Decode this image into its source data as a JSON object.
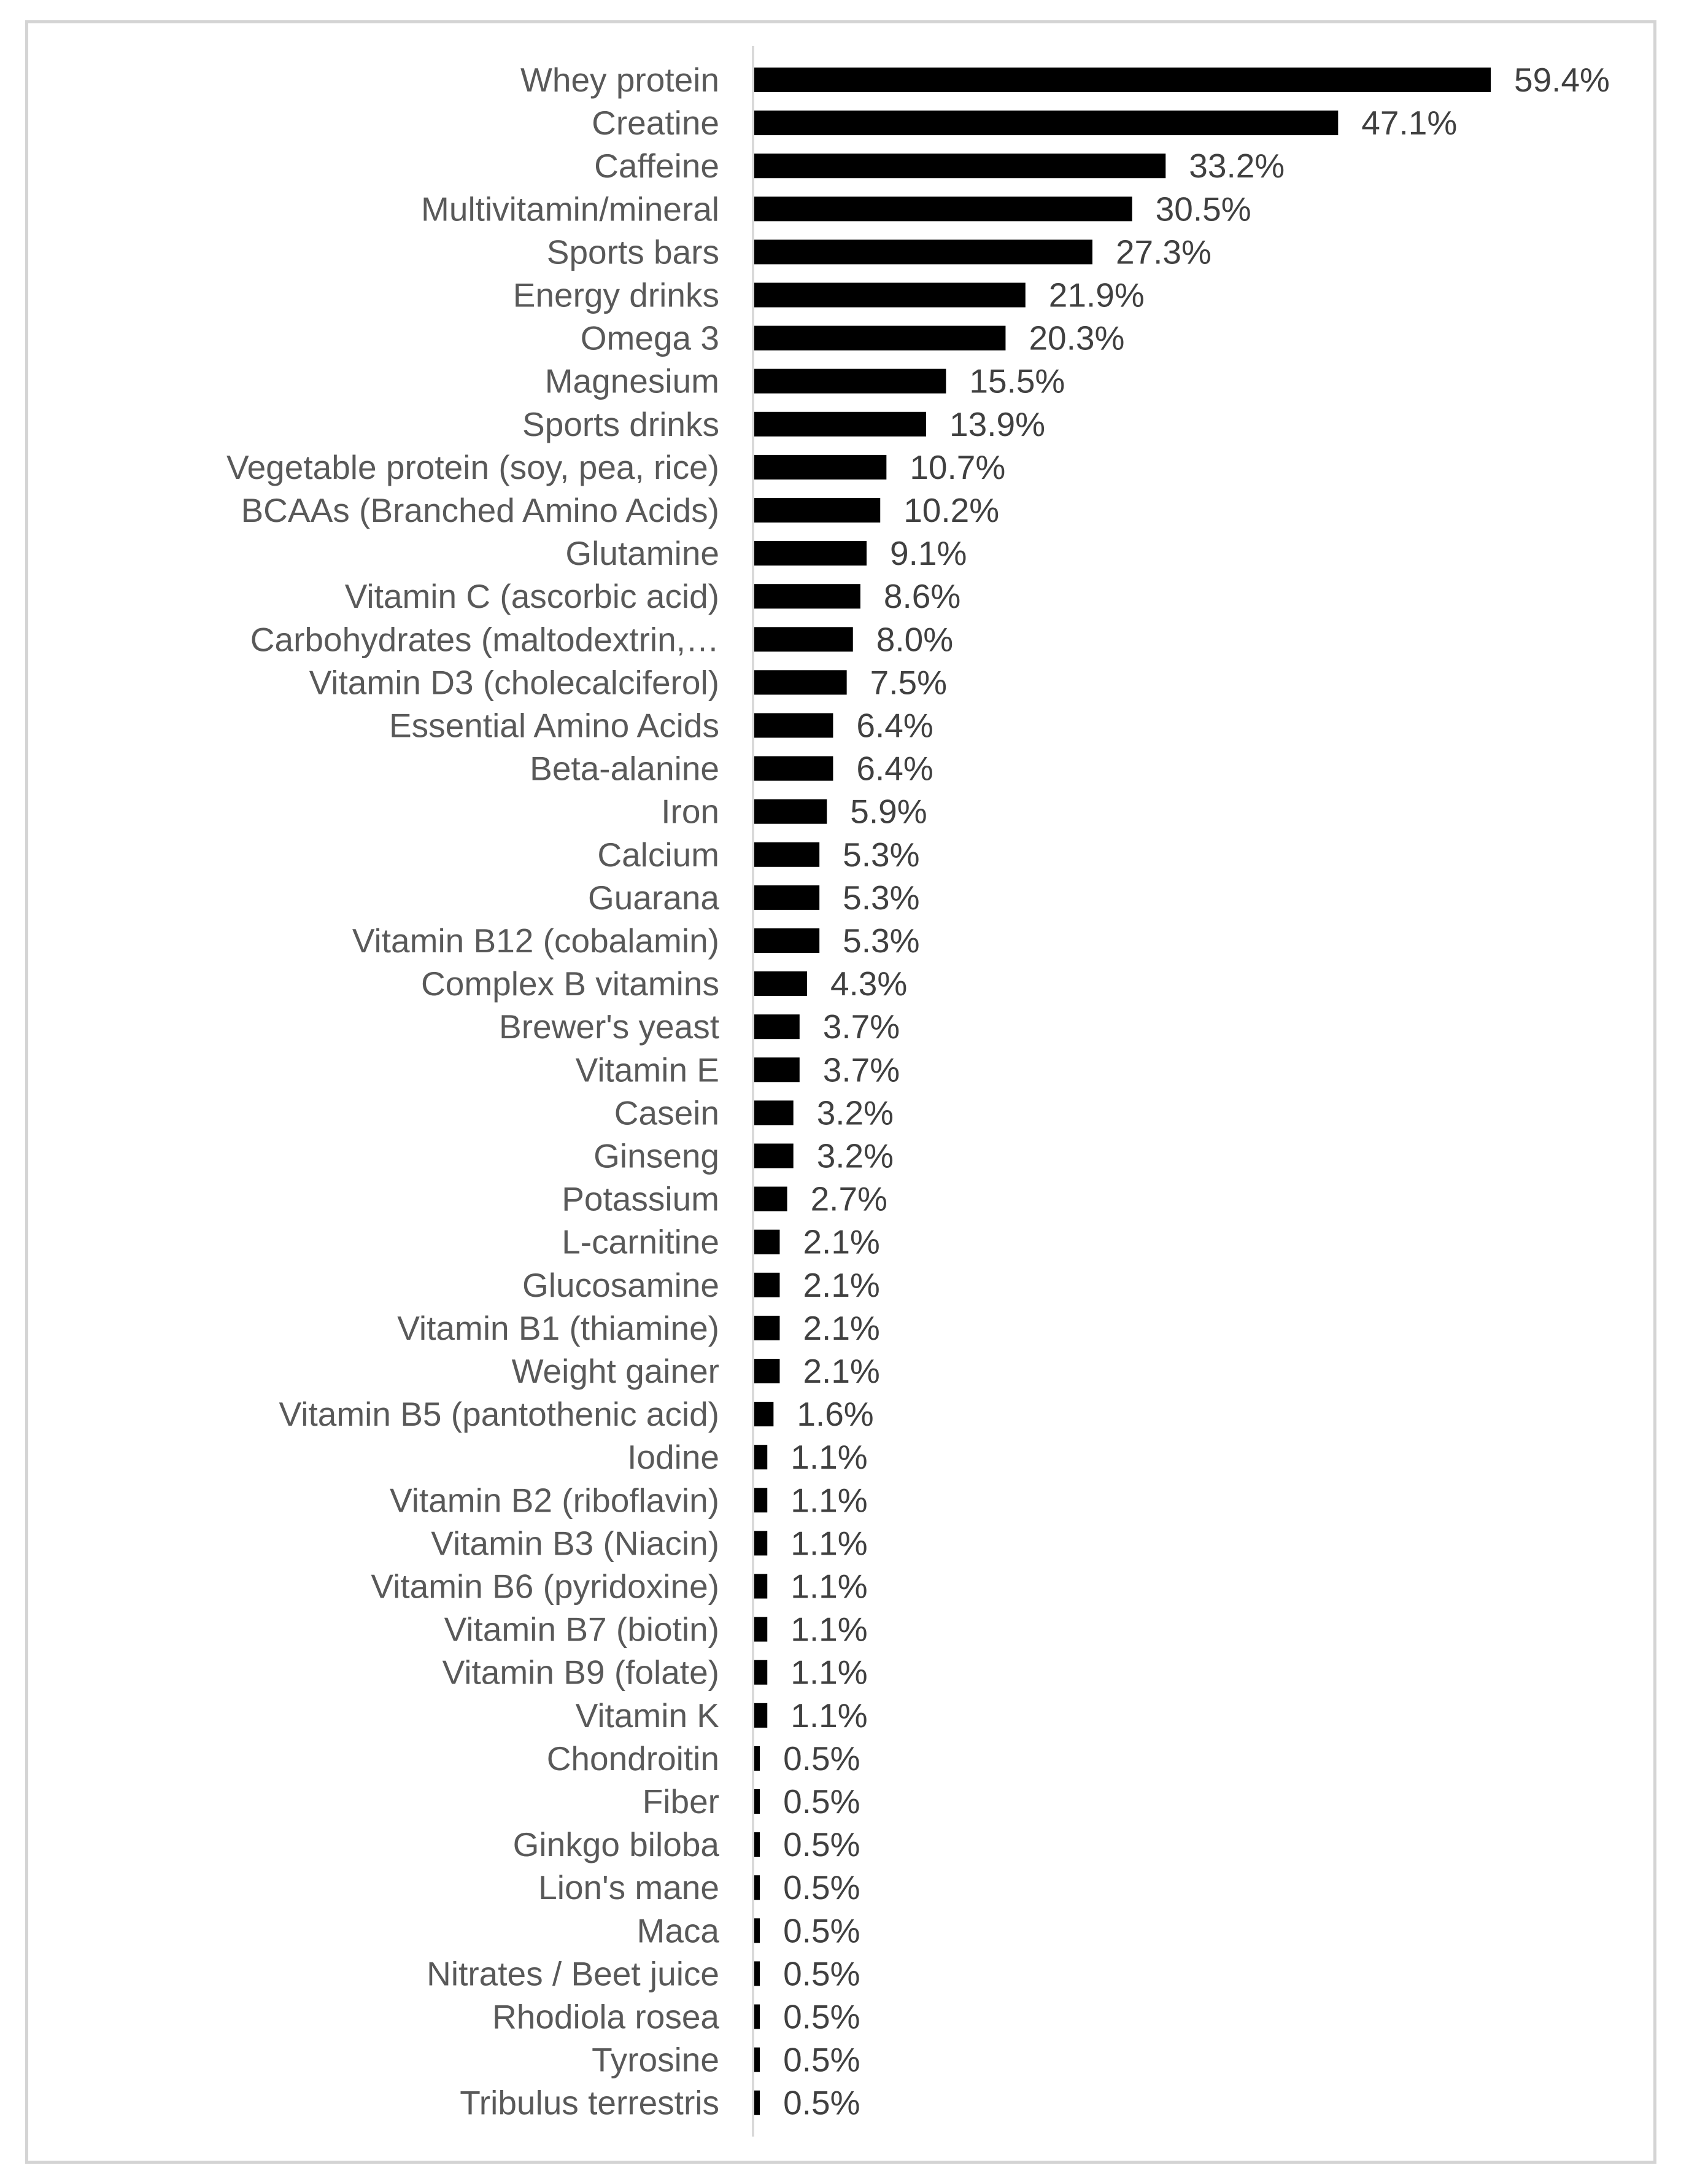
{
  "chart_data": {
    "type": "bar",
    "orientation": "horizontal",
    "categories": [
      "Whey protein",
      "Creatine",
      "Caffeine",
      "Multivitamin/mineral",
      "Sports bars",
      "Energy drinks",
      "Omega 3",
      "Magnesium",
      "Sports drinks",
      "Vegetable protein (soy, pea, rice)",
      "BCAAs (Branched Amino Acids)",
      "Glutamine",
      "Vitamin C (ascorbic acid)",
      "Carbohydrates (maltodextrin,…",
      "Vitamin D3 (cholecalciferol)",
      "Essential Amino Acids",
      "Beta-alanine",
      "Iron",
      "Calcium",
      "Guarana",
      "Vitamin B12 (cobalamin)",
      "Complex B vitamins",
      "Brewer's yeast",
      "Vitamin E",
      "Casein",
      "Ginseng",
      "Potassium",
      "L-carnitine",
      "Glucosamine",
      "Vitamin B1 (thiamine)",
      "Weight gainer",
      "Vitamin B5 (pantothenic acid)",
      "Iodine",
      "Vitamin B2 (riboflavin)",
      "Vitamin B3 (Niacin)",
      "Vitamin B6 (pyridoxine)",
      "Vitamin B7 (biotin)",
      "Vitamin B9 (folate)",
      "Vitamin K",
      "Chondroitin",
      "Fiber",
      "Ginkgo biloba",
      "Lion's mane",
      "Maca",
      "Nitrates / Beet juice",
      "Rhodiola rosea",
      "Tyrosine",
      "Tribulus terrestris"
    ],
    "values": [
      59.4,
      47.1,
      33.2,
      30.5,
      27.3,
      21.9,
      20.3,
      15.5,
      13.9,
      10.7,
      10.2,
      9.1,
      8.6,
      8.0,
      7.5,
      6.4,
      6.4,
      5.9,
      5.3,
      5.3,
      5.3,
      4.3,
      3.7,
      3.7,
      3.2,
      3.2,
      2.7,
      2.1,
      2.1,
      2.1,
      2.1,
      1.6,
      1.1,
      1.1,
      1.1,
      1.1,
      1.1,
      1.1,
      1.1,
      0.5,
      0.5,
      0.5,
      0.5,
      0.5,
      0.5,
      0.5,
      0.5,
      0.5
    ],
    "data_labels": [
      "59.4%",
      "47.1%",
      "33.2%",
      "30.5%",
      "27.3%",
      "21.9%",
      "20.3%",
      "15.5%",
      "13.9%",
      "10.7%",
      "10.2%",
      "9.1%",
      "8.6%",
      "8.0%",
      "7.5%",
      "6.4%",
      "6.4%",
      "5.9%",
      "5.3%",
      "5.3%",
      "5.3%",
      "4.3%",
      "3.7%",
      "3.7%",
      "3.2%",
      "3.2%",
      "2.7%",
      "2.1%",
      "2.1%",
      "2.1%",
      "2.1%",
      "1.6%",
      "1.1%",
      "1.1%",
      "1.1%",
      "1.1%",
      "1.1%",
      "1.1%",
      "1.1%",
      "0.5%",
      "0.5%",
      "0.5%",
      "0.5%",
      "0.5%",
      "0.5%",
      "0.5%",
      "0.5%",
      "0.5%"
    ],
    "unit": "%",
    "xlim": [
      0,
      59.4
    ],
    "grid": false,
    "legend": "none",
    "colors": {
      "bar": "#000000",
      "axis": "#d9d9d9",
      "category_text": "#595959",
      "value_text": "#404040",
      "frame": "#d4d4d4"
    }
  }
}
